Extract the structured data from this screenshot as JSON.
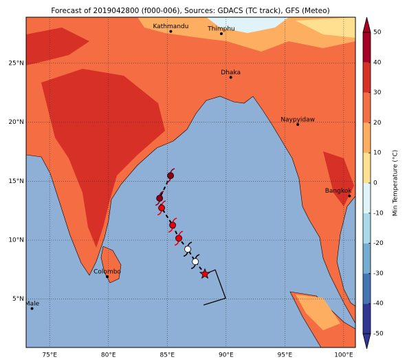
{
  "title": "Forecast of 2019042800 (f000-006), Sources: GDACS (TC track), GFS (Meteo)",
  "map": {
    "lonlim": [
      73,
      101
    ],
    "latlim": [
      0.9,
      28.9
    ],
    "lon_ticks": [
      {
        "value": 75,
        "label": "75°E"
      },
      {
        "value": 80,
        "label": "80°E"
      },
      {
        "value": 85,
        "label": "85°E"
      },
      {
        "value": 90,
        "label": "90°E"
      },
      {
        "value": 95,
        "label": "95°E"
      },
      {
        "value": 100,
        "label": "100°E"
      }
    ],
    "lat_ticks": [
      {
        "value": 5,
        "label": "5°N"
      },
      {
        "value": 10,
        "label": "10°N"
      },
      {
        "value": 15,
        "label": "15°N"
      },
      {
        "value": 20,
        "label": "20°N"
      },
      {
        "value": 25,
        "label": "25°N"
      }
    ]
  },
  "cities": [
    {
      "name": "Kathmandu",
      "lon": 85.3,
      "lat": 27.7
    },
    {
      "name": "Thimphu",
      "lon": 89.6,
      "lat": 27.5
    },
    {
      "name": "Dhaka",
      "lon": 90.4,
      "lat": 23.8
    },
    {
      "name": "Naypyidaw",
      "lon": 96.1,
      "lat": 19.8
    },
    {
      "name": "Bangkok",
      "lon": 100.5,
      "lat": 13.75
    },
    {
      "name": "Colombo",
      "lon": 79.9,
      "lat": 6.9
    },
    {
      "name": "Male",
      "lon": 73.5,
      "lat": 4.2
    }
  ],
  "track": {
    "points": [
      {
        "lon": 85.28,
        "lat": 15.47,
        "color": "#8b0016"
      },
      {
        "lon": 84.35,
        "lat": 13.55,
        "color": "#8b0016"
      },
      {
        "lon": 84.52,
        "lat": 12.73,
        "color": "#e8000b"
      },
      {
        "lon": 85.46,
        "lat": 11.27,
        "color": "#e8000b"
      },
      {
        "lon": 85.98,
        "lat": 10.16,
        "color": "#e8000b"
      },
      {
        "lon": 86.74,
        "lat": 9.23,
        "color": "#ffffff"
      },
      {
        "lon": 87.39,
        "lat": 8.18,
        "color": "#ffffff"
      }
    ],
    "current": {
      "lon": 88.2,
      "lat": 7.13,
      "color": "#e8000b"
    },
    "forecast": [
      [
        88.2,
        7.13
      ],
      [
        89.08,
        7.48
      ],
      [
        89.96,
        5.08
      ],
      [
        88.09,
        4.5
      ]
    ]
  },
  "colorbar": {
    "label": "Min Temperature (°C)",
    "lim": [
      -50,
      50
    ],
    "ticks": [
      -50,
      -40,
      -30,
      -20,
      -10,
      0,
      10,
      20,
      30,
      40,
      50
    ],
    "colors": [
      "#313695",
      "#4575b4",
      "#74add1",
      "#abd9e9",
      "#e0f3f8",
      "#fee090",
      "#fdae61",
      "#f46d43",
      "#d73027",
      "#a50026"
    ]
  }
}
